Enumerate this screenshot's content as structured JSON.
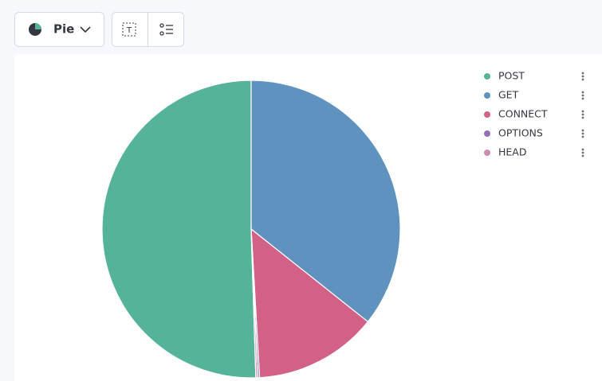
{
  "toolbar": {
    "chart_type": "Pie"
  },
  "chart_data": {
    "type": "pie",
    "categories": [
      "POST",
      "GET",
      "CONNECT",
      "OPTIONS",
      "HEAD"
    ],
    "values": [
      50.5,
      35.7,
      13.4,
      0.2,
      0.2
    ],
    "colors": [
      "#54b399",
      "#6092c0",
      "#d36086",
      "#9170b8",
      "#ca8eae"
    ],
    "legend": "top-right"
  }
}
